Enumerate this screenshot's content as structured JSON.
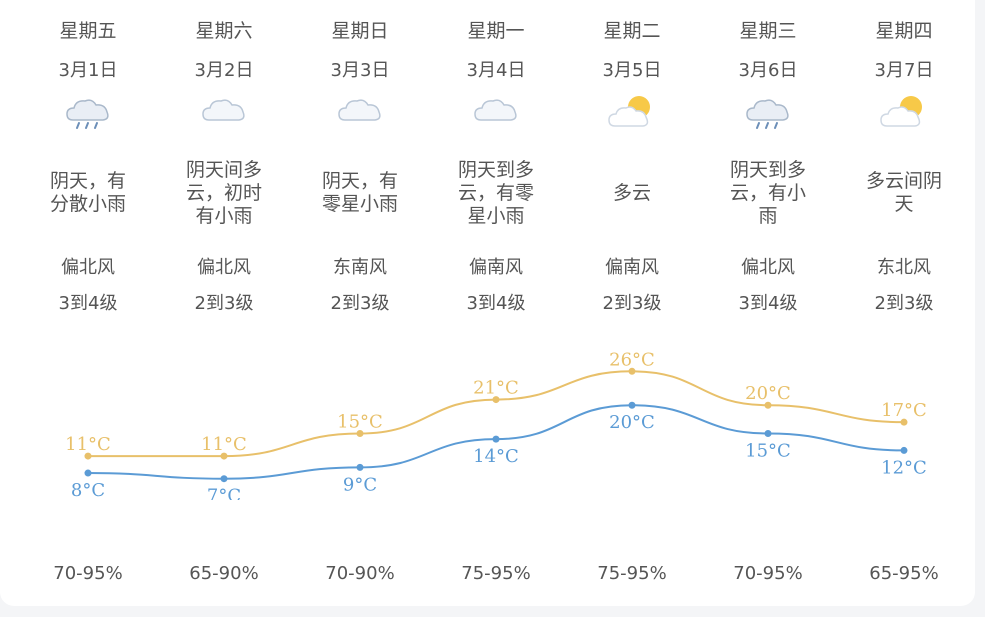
{
  "days": [
    {
      "weekday": "星期五",
      "date": "3月1日",
      "icon": "cloud-rain-icon",
      "desc": "阴天，有分散小雨",
      "wind_dir": "偏北风",
      "wind_level": "3到4级",
      "high": "11°C",
      "low": "8°C",
      "humidity": "70-95%"
    },
    {
      "weekday": "星期六",
      "date": "3月2日",
      "icon": "cloud-icon",
      "desc": "阴天间多云，初时有小雨",
      "wind_dir": "偏北风",
      "wind_level": "2到3级",
      "high": "11°C",
      "low": "7°C",
      "humidity": "65-90%"
    },
    {
      "weekday": "星期日",
      "date": "3月3日",
      "icon": "cloud-icon",
      "desc": "阴天，有零星小雨",
      "wind_dir": "东南风",
      "wind_level": "2到3级",
      "high": "15°C",
      "low": "9°C",
      "humidity": "70-90%"
    },
    {
      "weekday": "星期一",
      "date": "3月4日",
      "icon": "cloud-icon",
      "desc": "阴天到多云，有零星小雨",
      "wind_dir": "偏南风",
      "wind_level": "3到4级",
      "high": "21°C",
      "low": "14°C",
      "humidity": "75-95%"
    },
    {
      "weekday": "星期二",
      "date": "3月5日",
      "icon": "sun-cloud-icon",
      "desc": "多云",
      "wind_dir": "偏南风",
      "wind_level": "2到3级",
      "high": "26°C",
      "low": "20°C",
      "humidity": "75-95%"
    },
    {
      "weekday": "星期三",
      "date": "3月6日",
      "icon": "cloud-rain-icon",
      "desc": "阴天到多云，有小雨",
      "wind_dir": "偏北风",
      "wind_level": "3到4级",
      "high": "20°C",
      "low": "15°C",
      "humidity": "70-95%"
    },
    {
      "weekday": "星期四",
      "date": "3月7日",
      "icon": "sun-cloud-icon",
      "desc": "多云间阴天",
      "wind_dir": "东北风",
      "wind_level": "2到3级",
      "high": "17°C",
      "low": "12°C",
      "humidity": "65-95%"
    }
  ],
  "chart_data": {
    "type": "line",
    "series": [
      {
        "values": [
          11,
          11,
          15,
          21,
          26,
          20,
          17
        ],
        "color": "#e8c06a"
      },
      {
        "values": [
          8,
          7,
          9,
          14,
          20,
          15,
          12
        ],
        "color": "#5b9bd5"
      }
    ],
    "unit": "°C"
  }
}
